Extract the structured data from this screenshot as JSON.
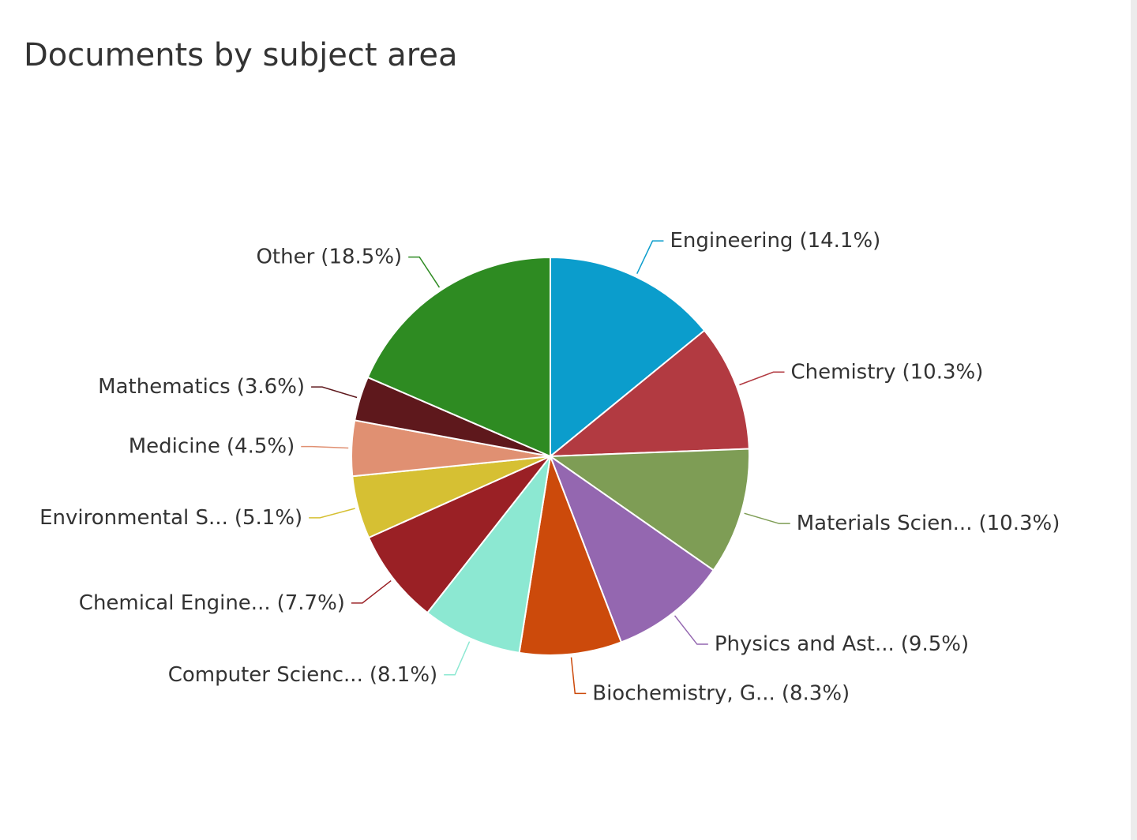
{
  "chart_data": {
    "type": "pie",
    "title": "Documents by subject area",
    "categories": [
      "Engineering",
      "Chemistry",
      "Materials Scien...",
      "Physics and Ast...",
      "Biochemistry, G...",
      "Computer Scienc...",
      "Chemical Engine...",
      "Environmental S...",
      "Medicine",
      "Mathematics",
      "Other"
    ],
    "values": [
      14.1,
      10.3,
      10.3,
      9.5,
      8.3,
      8.1,
      7.7,
      5.1,
      4.5,
      3.6,
      18.5
    ],
    "value_labels": [
      "(14.1%)",
      "(10.3%)",
      "(10.3%)",
      "(9.5%)",
      "(8.3%)",
      "(8.1%)",
      "(7.7%)",
      "(5.1%)",
      "(4.5%)",
      "(3.6%)",
      "(18.5%)"
    ],
    "colors": [
      "#0b9dcc",
      "#b23a41",
      "#7e9d55",
      "#9467b0",
      "#cc4a0b",
      "#8ce8d2",
      "#9a2025",
      "#d6c033",
      "#e09072",
      "#5e181c",
      "#2e8b22"
    ]
  }
}
